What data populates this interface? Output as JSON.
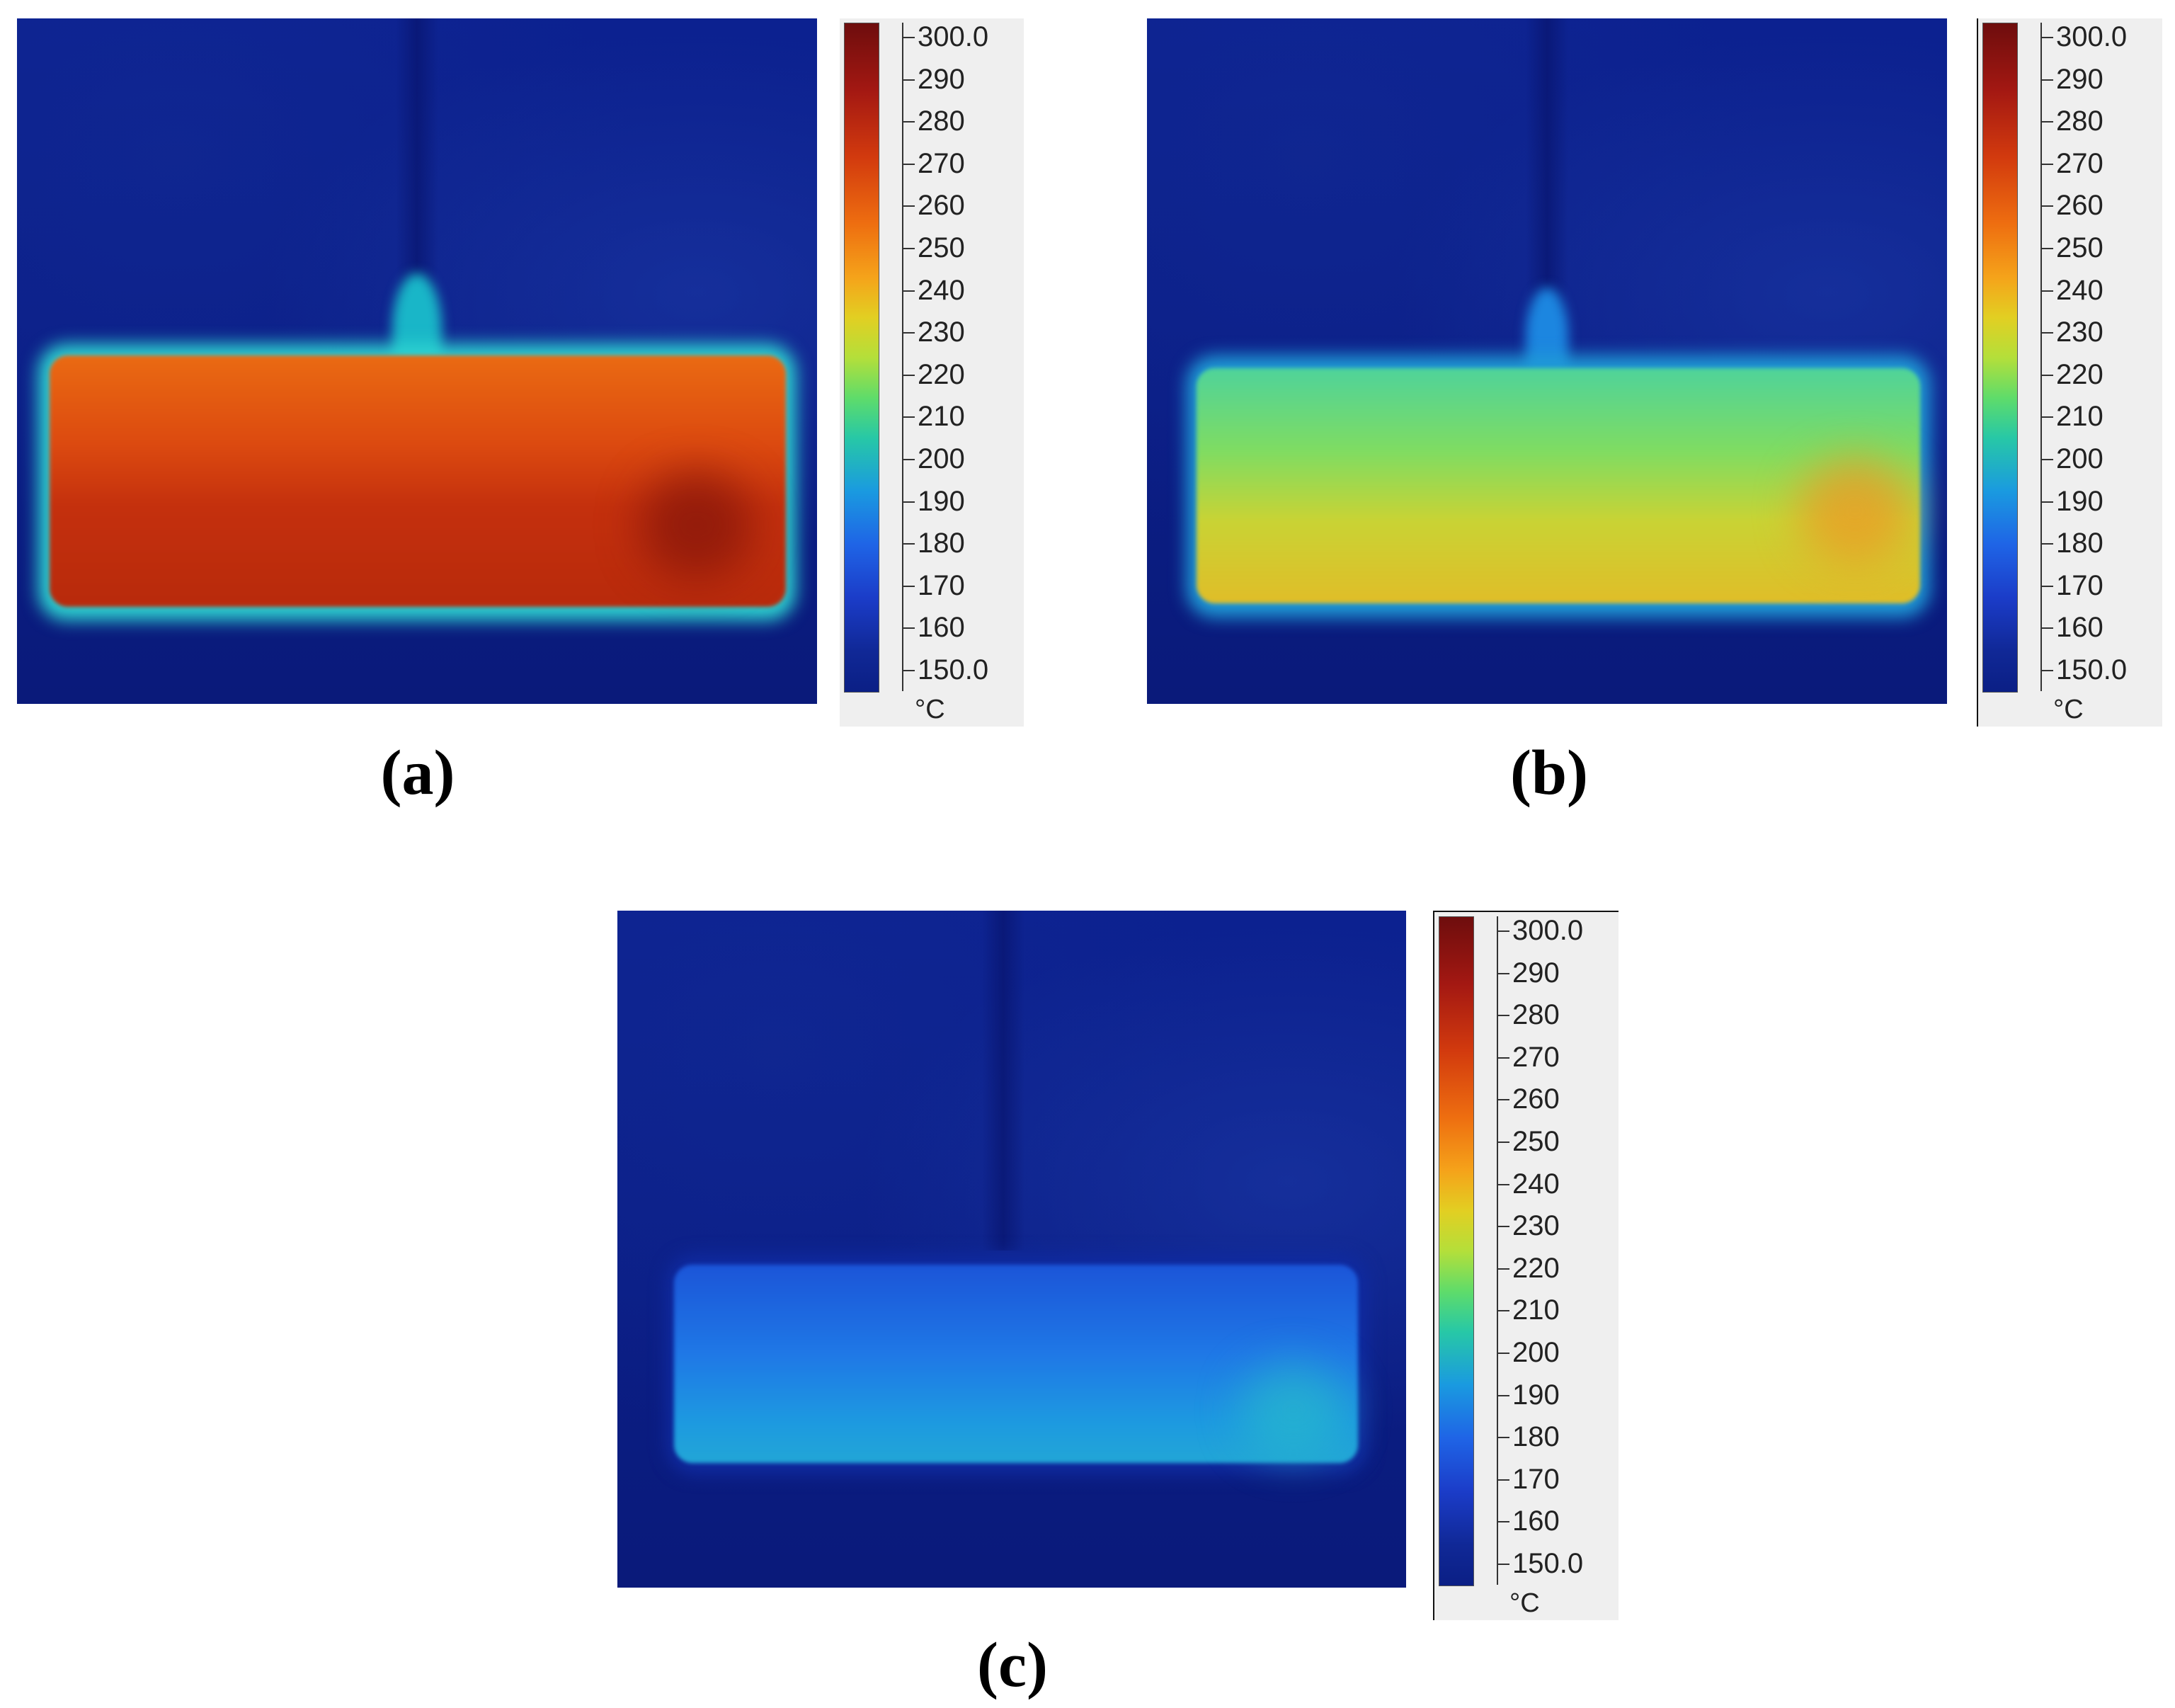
{
  "scale_labels": [
    "300.0",
    "290",
    "280",
    "270",
    "260",
    "250",
    "240",
    "230",
    "220",
    "210",
    "200",
    "190",
    "180",
    "170",
    "160",
    "150.0"
  ],
  "unit": "°C",
  "panels": [
    {
      "caption": "(a)",
      "bar_color": "#c8350e",
      "sprue_color": "#1fc6b5",
      "state": "hot (~280 °C bar)"
    },
    {
      "caption": "(b)",
      "bar_color": "#8ee05a",
      "sprue_color": "#1e8fe0",
      "state": "intermediate (~240 °C bar)"
    },
    {
      "caption": "(c)",
      "bar_color": "#1f7ae6",
      "sprue_color": "#0b1f85",
      "state": "cooled (~185 °C bar)"
    }
  ]
}
